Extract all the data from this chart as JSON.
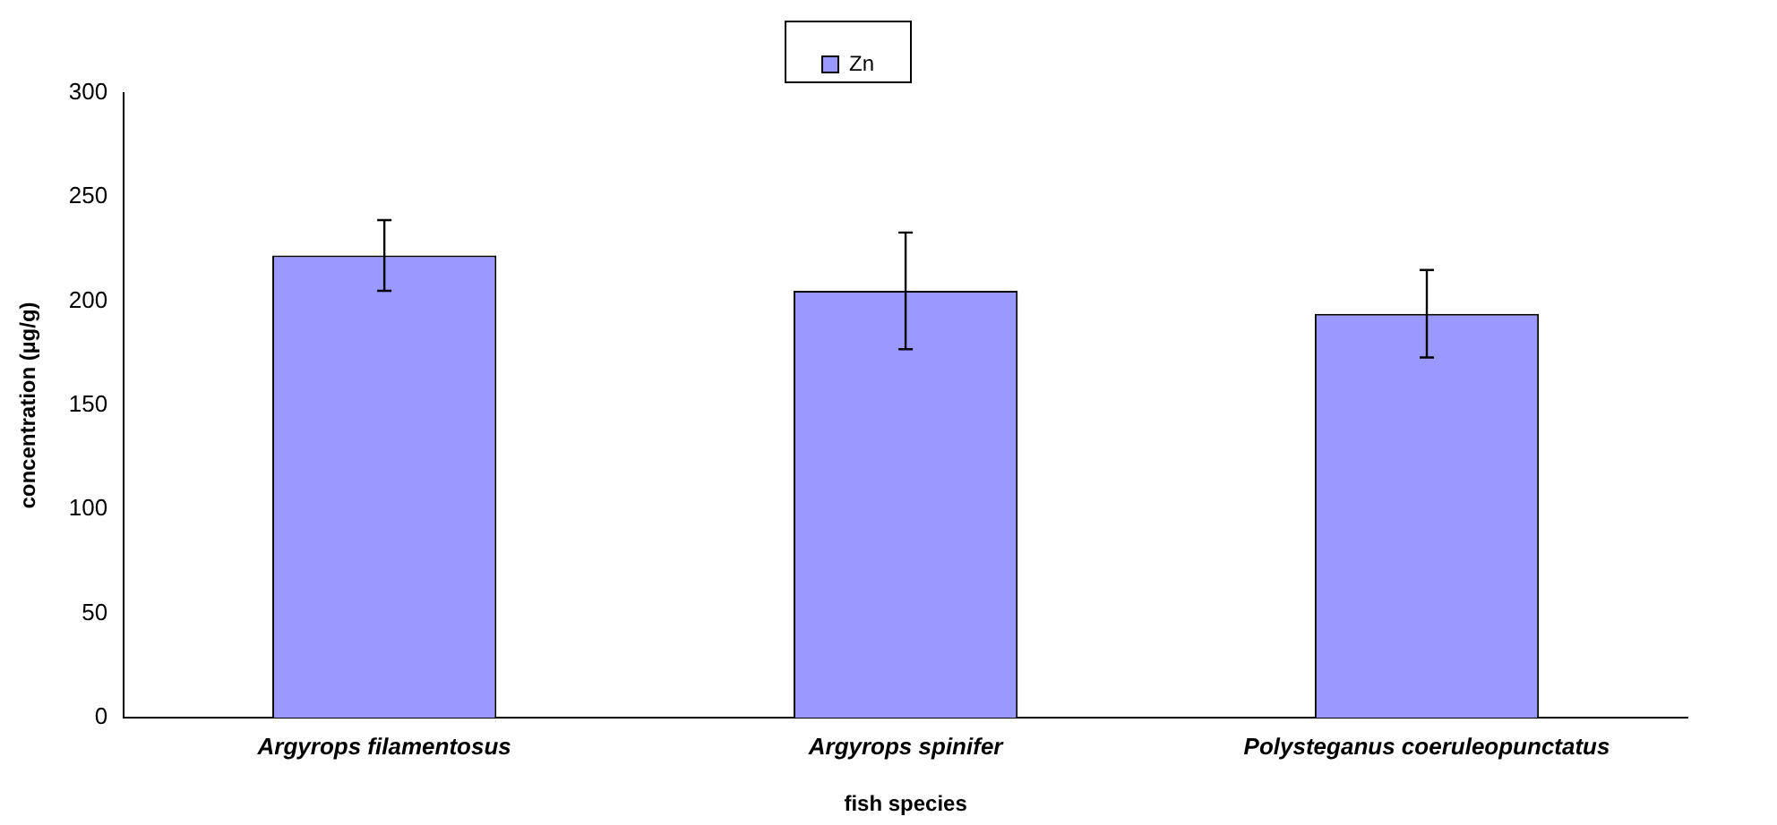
{
  "chart_data": {
    "type": "bar",
    "xlabel": "fish species",
    "ylabel": "concentration (µg/g)",
    "categories": [
      "Argyrops filamentosus",
      "Argyrops spinifer",
      "Polysteganus coeruleopunctatus"
    ],
    "series": [
      {
        "name": "Zn",
        "color": "#9999ff",
        "values": [
          222,
          205,
          194
        ],
        "errors": [
          17,
          28,
          21
        ]
      }
    ],
    "ylim": [
      0,
      300
    ],
    "yticks": [
      0,
      50,
      100,
      150,
      200,
      250,
      300
    ],
    "grid": false,
    "legend": "top"
  }
}
